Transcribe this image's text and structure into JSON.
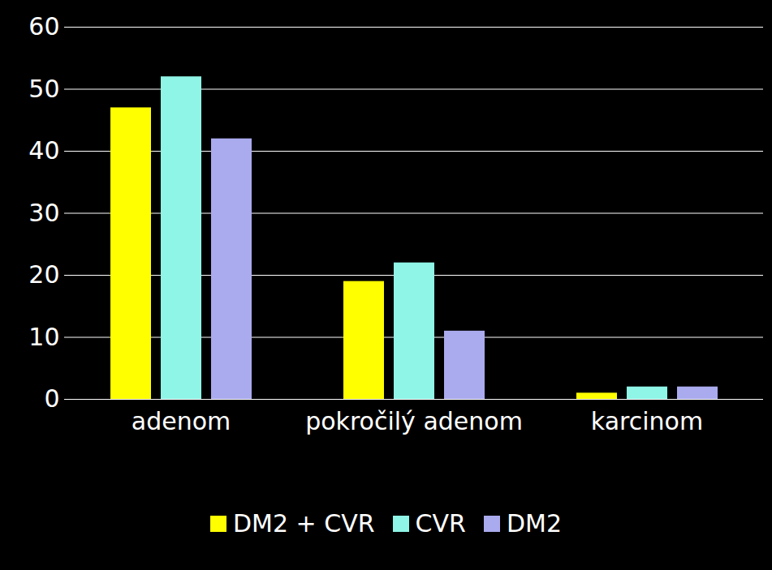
{
  "chart_data": {
    "type": "bar",
    "categories": [
      "adenom",
      "pokročilý adenom",
      "karcinom"
    ],
    "series": [
      {
        "name": "DM2 + CVR",
        "color": "#ffff00",
        "values": [
          47,
          19,
          1
        ]
      },
      {
        "name": "CVR",
        "color": "#8ff5e6",
        "values": [
          52,
          22,
          2
        ]
      },
      {
        "name": "DM2",
        "color": "#aaaaee",
        "values": [
          42,
          11,
          2
        ]
      }
    ],
    "ylim": [
      0,
      60
    ],
    "yticks": [
      0,
      10,
      20,
      30,
      40,
      50,
      60
    ],
    "grid": true,
    "legend": "bottom"
  }
}
